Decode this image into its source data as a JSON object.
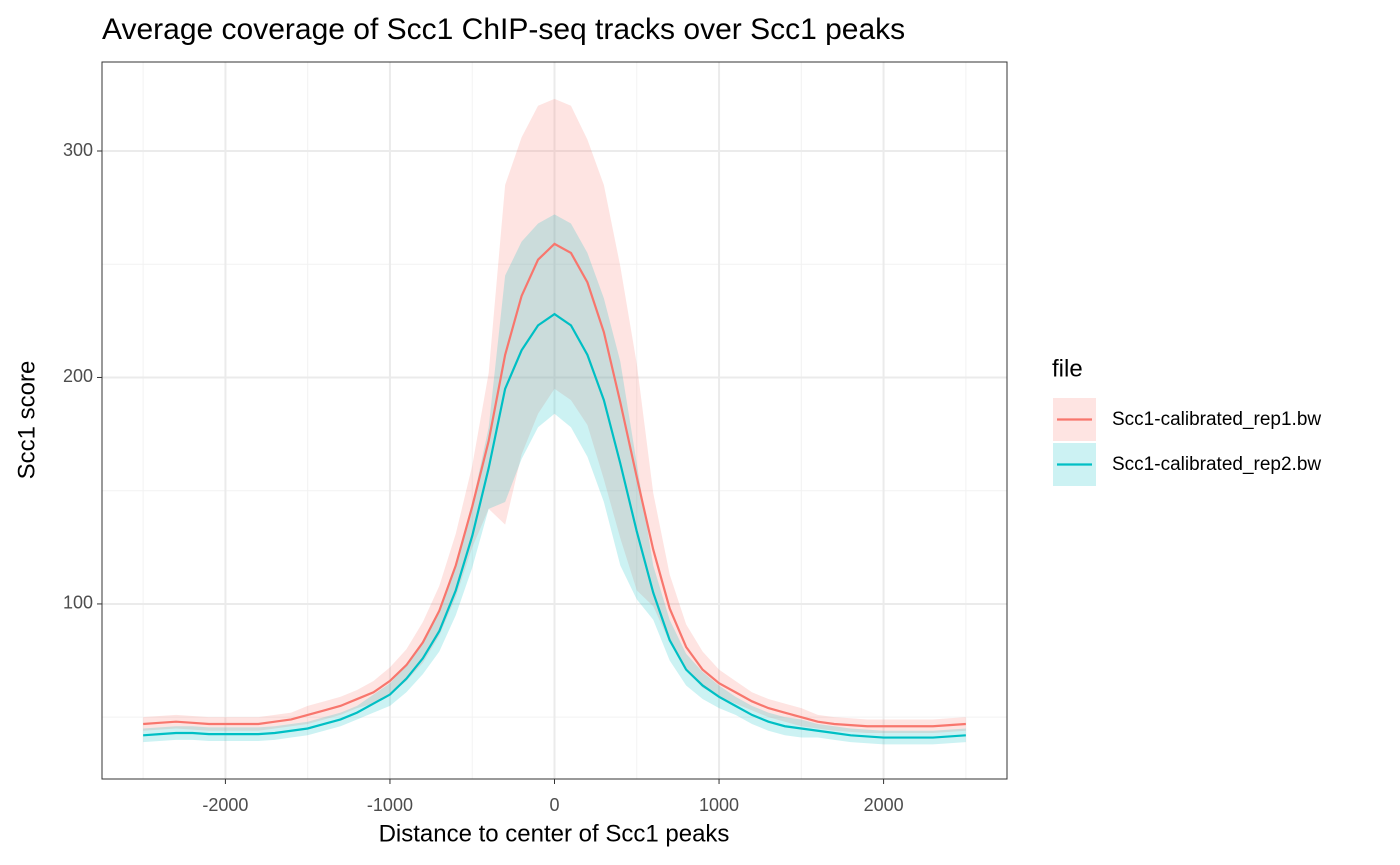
{
  "chart_data": {
    "type": "line_ribbon",
    "title": "Average coverage of Scc1 ChIP-seq tracks over Scc1 peaks",
    "x_label": "Distance to center of Scc1 peaks",
    "y_label": "Scc1 score",
    "legend_title": "file",
    "legend": "right",
    "grid": true,
    "xlim": [
      -2750,
      2750
    ],
    "ylim": [
      22.7,
      339.3
    ],
    "xticks": [
      -2000,
      -1000,
      0,
      1000,
      2000
    ],
    "yticks": [
      100,
      200,
      300
    ],
    "x_minor_ticks": [
      -2500,
      -1500,
      -500,
      500,
      1500,
      2500
    ],
    "y_minor_ticks": [
      50,
      150,
      250
    ],
    "x": [
      -2500,
      -2400,
      -2300,
      -2200,
      -2100,
      -2000,
      -1900,
      -1800,
      -1700,
      -1600,
      -1500,
      -1400,
      -1300,
      -1200,
      -1100,
      -1000,
      -900,
      -800,
      -700,
      -600,
      -500,
      -400,
      -300,
      -200,
      -100,
      0,
      100,
      200,
      300,
      400,
      500,
      600,
      700,
      800,
      900,
      1000,
      1100,
      1200,
      1300,
      1400,
      1500,
      1600,
      1700,
      1800,
      1900,
      2000,
      2100,
      2200,
      2300,
      2400,
      2500
    ],
    "series": [
      {
        "name": "Scc1-calibrated_rep1.bw",
        "color": "#F8766D",
        "values": [
          47,
          47.5,
          48,
          47.5,
          47,
          47,
          47,
          47,
          48,
          49,
          51,
          53,
          55,
          58,
          61,
          66,
          73,
          83,
          97,
          117,
          143,
          172,
          210,
          236,
          252,
          259,
          255,
          242,
          220,
          189,
          156,
          124,
          98,
          81,
          71,
          65,
          61,
          57,
          54,
          52,
          50,
          48,
          47,
          46.5,
          46,
          46,
          46,
          46,
          46,
          46.5,
          47
        ],
        "upper": [
          50,
          50.5,
          51,
          50.5,
          50,
          50,
          50,
          50,
          51,
          52,
          55,
          57,
          59,
          62,
          66,
          72,
          80,
          92,
          108,
          131,
          161,
          202,
          285,
          306,
          320,
          323,
          320,
          305,
          285,
          249,
          206,
          149,
          113,
          91,
          79,
          71,
          66,
          61,
          58,
          56,
          54,
          51,
          50,
          49.5,
          49,
          49,
          49,
          49,
          49,
          49.5,
          50
        ],
        "lower": [
          44,
          44.5,
          45,
          44.5,
          44,
          44,
          44,
          44,
          45,
          46,
          47,
          49,
          51,
          54,
          56,
          60,
          66,
          74,
          86,
          103,
          125,
          142,
          135,
          166,
          184,
          195,
          190,
          179,
          155,
          129,
          106,
          99,
          83,
          71,
          63,
          59,
          56,
          53,
          50,
          48,
          46,
          45,
          44,
          43.5,
          43,
          43,
          43,
          43,
          43,
          43.5,
          44
        ]
      },
      {
        "name": "Scc1-calibrated_rep2.bw",
        "color": "#00BFC4",
        "values": [
          42,
          42.5,
          43,
          43,
          42.5,
          42.5,
          42.5,
          42.5,
          43,
          44,
          45,
          47,
          49,
          52,
          56,
          60,
          67,
          76,
          88,
          106,
          130,
          160,
          195,
          212,
          223,
          228,
          223,
          210,
          190,
          162,
          132,
          105,
          84,
          71,
          64,
          59,
          55,
          51,
          48,
          46,
          45,
          44,
          43,
          42,
          41.5,
          41,
          41,
          41,
          41,
          41.5,
          42
        ],
        "upper": [
          45,
          45.5,
          46,
          46,
          45.5,
          45.5,
          45.5,
          45.5,
          46,
          47,
          48,
          50,
          52,
          55,
          60,
          65,
          73,
          83,
          97,
          117,
          144,
          178,
          245,
          260,
          268,
          272,
          268,
          255,
          235,
          207,
          162,
          117,
          93,
          78,
          70,
          64,
          59,
          55,
          52,
          50,
          49,
          47,
          46,
          45,
          44.5,
          44,
          44,
          44,
          44,
          44.5,
          45
        ],
        "lower": [
          39,
          39.5,
          40,
          40,
          39.5,
          39.5,
          39.5,
          39.5,
          40,
          41,
          42,
          44,
          46,
          49,
          52,
          55,
          61,
          69,
          79,
          95,
          116,
          142,
          145,
          164,
          178,
          184,
          178,
          165,
          145,
          117,
          102,
          93,
          75,
          64,
          58,
          54,
          51,
          47,
          44,
          42,
          41,
          41,
          40,
          39,
          38.5,
          38,
          38,
          38,
          38,
          38.5,
          39
        ]
      }
    ]
  }
}
